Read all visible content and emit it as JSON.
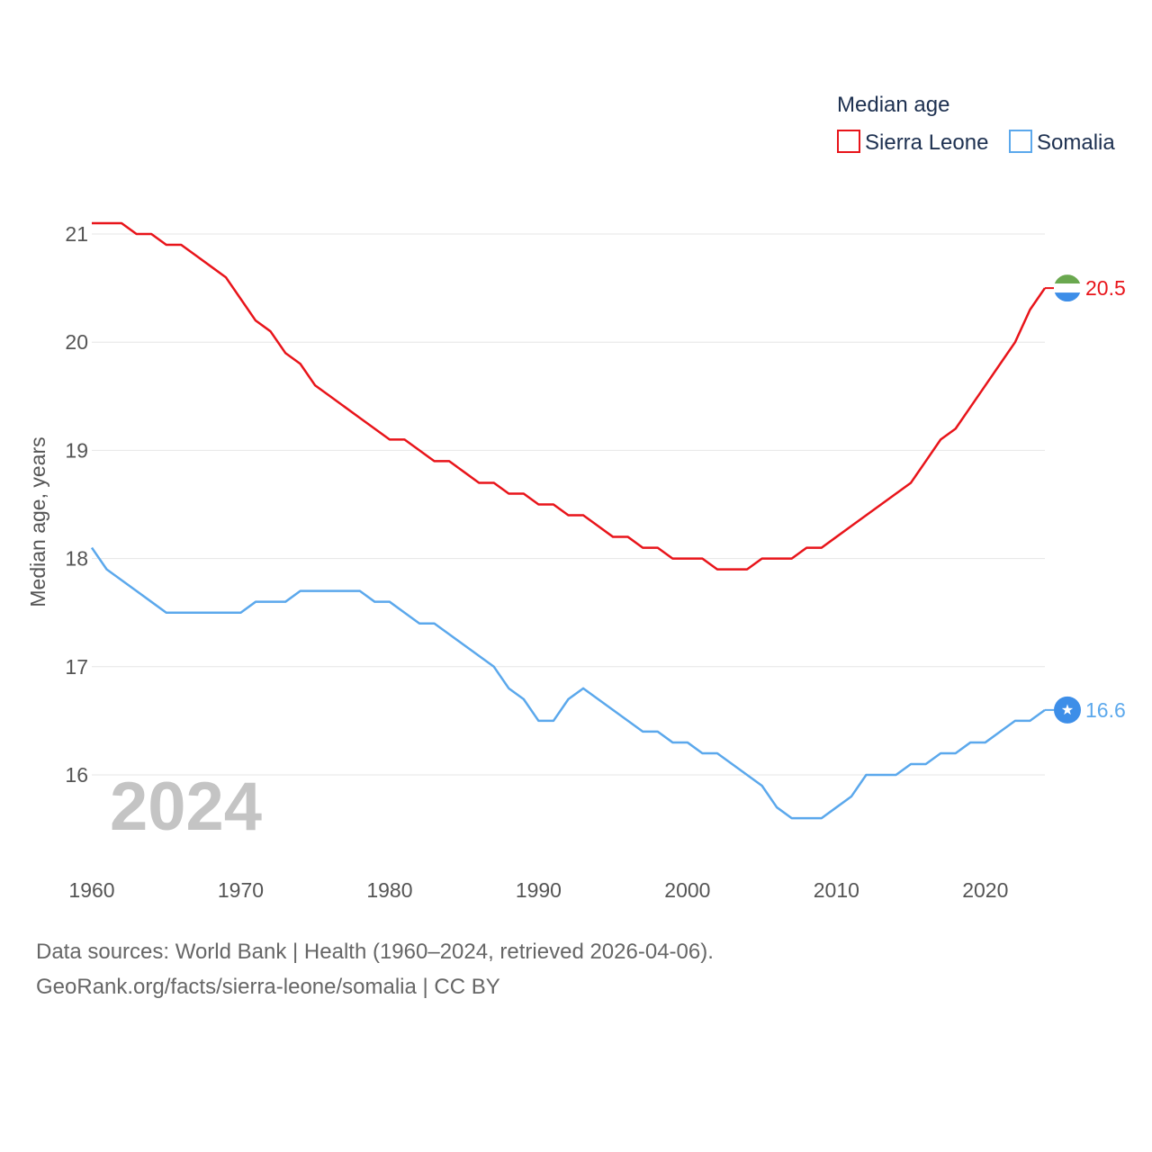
{
  "chart_data": {
    "type": "line",
    "legend_title": "Median age",
    "ylabel": "Median age, years",
    "year_label": "2024",
    "xlim": [
      1960,
      2024
    ],
    "ylim": [
      15.2,
      21.3
    ],
    "x_ticks": [
      1960,
      1970,
      1980,
      1990,
      2000,
      2010,
      2020
    ],
    "y_ticks": [
      16,
      17,
      18,
      19,
      20,
      21
    ],
    "x": [
      1960,
      1961,
      1962,
      1963,
      1964,
      1965,
      1966,
      1967,
      1968,
      1969,
      1970,
      1971,
      1972,
      1973,
      1974,
      1975,
      1976,
      1977,
      1978,
      1979,
      1980,
      1981,
      1982,
      1983,
      1984,
      1985,
      1986,
      1987,
      1988,
      1989,
      1990,
      1991,
      1992,
      1993,
      1994,
      1995,
      1996,
      1997,
      1998,
      1999,
      2000,
      2001,
      2002,
      2003,
      2004,
      2005,
      2006,
      2007,
      2008,
      2009,
      2010,
      2011,
      2012,
      2013,
      2014,
      2015,
      2016,
      2017,
      2018,
      2019,
      2020,
      2021,
      2022,
      2023,
      2024
    ],
    "series": [
      {
        "name": "Sierra Leone",
        "color": "#e8141a",
        "end_label": "20.5",
        "values": [
          21.1,
          21.1,
          21.1,
          21.0,
          21.0,
          20.9,
          20.9,
          20.8,
          20.7,
          20.6,
          20.4,
          20.2,
          20.1,
          19.9,
          19.8,
          19.6,
          19.5,
          19.4,
          19.3,
          19.2,
          19.1,
          19.1,
          19.0,
          18.9,
          18.9,
          18.8,
          18.7,
          18.7,
          18.6,
          18.6,
          18.5,
          18.5,
          18.4,
          18.4,
          18.3,
          18.2,
          18.2,
          18.1,
          18.1,
          18.0,
          18.0,
          18.0,
          17.9,
          17.9,
          17.9,
          18.0,
          18.0,
          18.0,
          18.1,
          18.1,
          18.2,
          18.3,
          18.4,
          18.5,
          18.6,
          18.7,
          18.9,
          19.1,
          19.2,
          19.4,
          19.6,
          19.8,
          20.0,
          20.3,
          20.5
        ]
      },
      {
        "name": "Somalia",
        "color": "#5ba8ec",
        "end_label": "16.6",
        "values": [
          18.1,
          17.9,
          17.8,
          17.7,
          17.6,
          17.5,
          17.5,
          17.5,
          17.5,
          17.5,
          17.5,
          17.6,
          17.6,
          17.6,
          17.7,
          17.7,
          17.7,
          17.7,
          17.7,
          17.6,
          17.6,
          17.5,
          17.4,
          17.4,
          17.3,
          17.2,
          17.1,
          17.0,
          16.8,
          16.7,
          16.5,
          16.5,
          16.7,
          16.8,
          16.7,
          16.6,
          16.5,
          16.4,
          16.4,
          16.3,
          16.3,
          16.2,
          16.2,
          16.1,
          16.0,
          15.9,
          15.7,
          15.6,
          15.6,
          15.6,
          15.7,
          15.8,
          16.0,
          16.0,
          16.0,
          16.1,
          16.1,
          16.2,
          16.2,
          16.3,
          16.3,
          16.4,
          16.5,
          16.5,
          16.6
        ]
      }
    ]
  },
  "icons": {
    "sierra_leone_flag": "sierra-leone-flag-icon",
    "somalia_flag": "somalia-flag-icon"
  },
  "colors": {
    "sierra_leone_green": "#6aa84f",
    "sierra_leone_blue": "#3d8ee8",
    "somalia_blue": "#3d8ee8"
  },
  "source": {
    "line1": "Data sources: World Bank | Health (1960–2024, retrieved 2026-04-06).",
    "line2": "GeoRank.org/facts/sierra-leone/somalia | CC BY"
  }
}
